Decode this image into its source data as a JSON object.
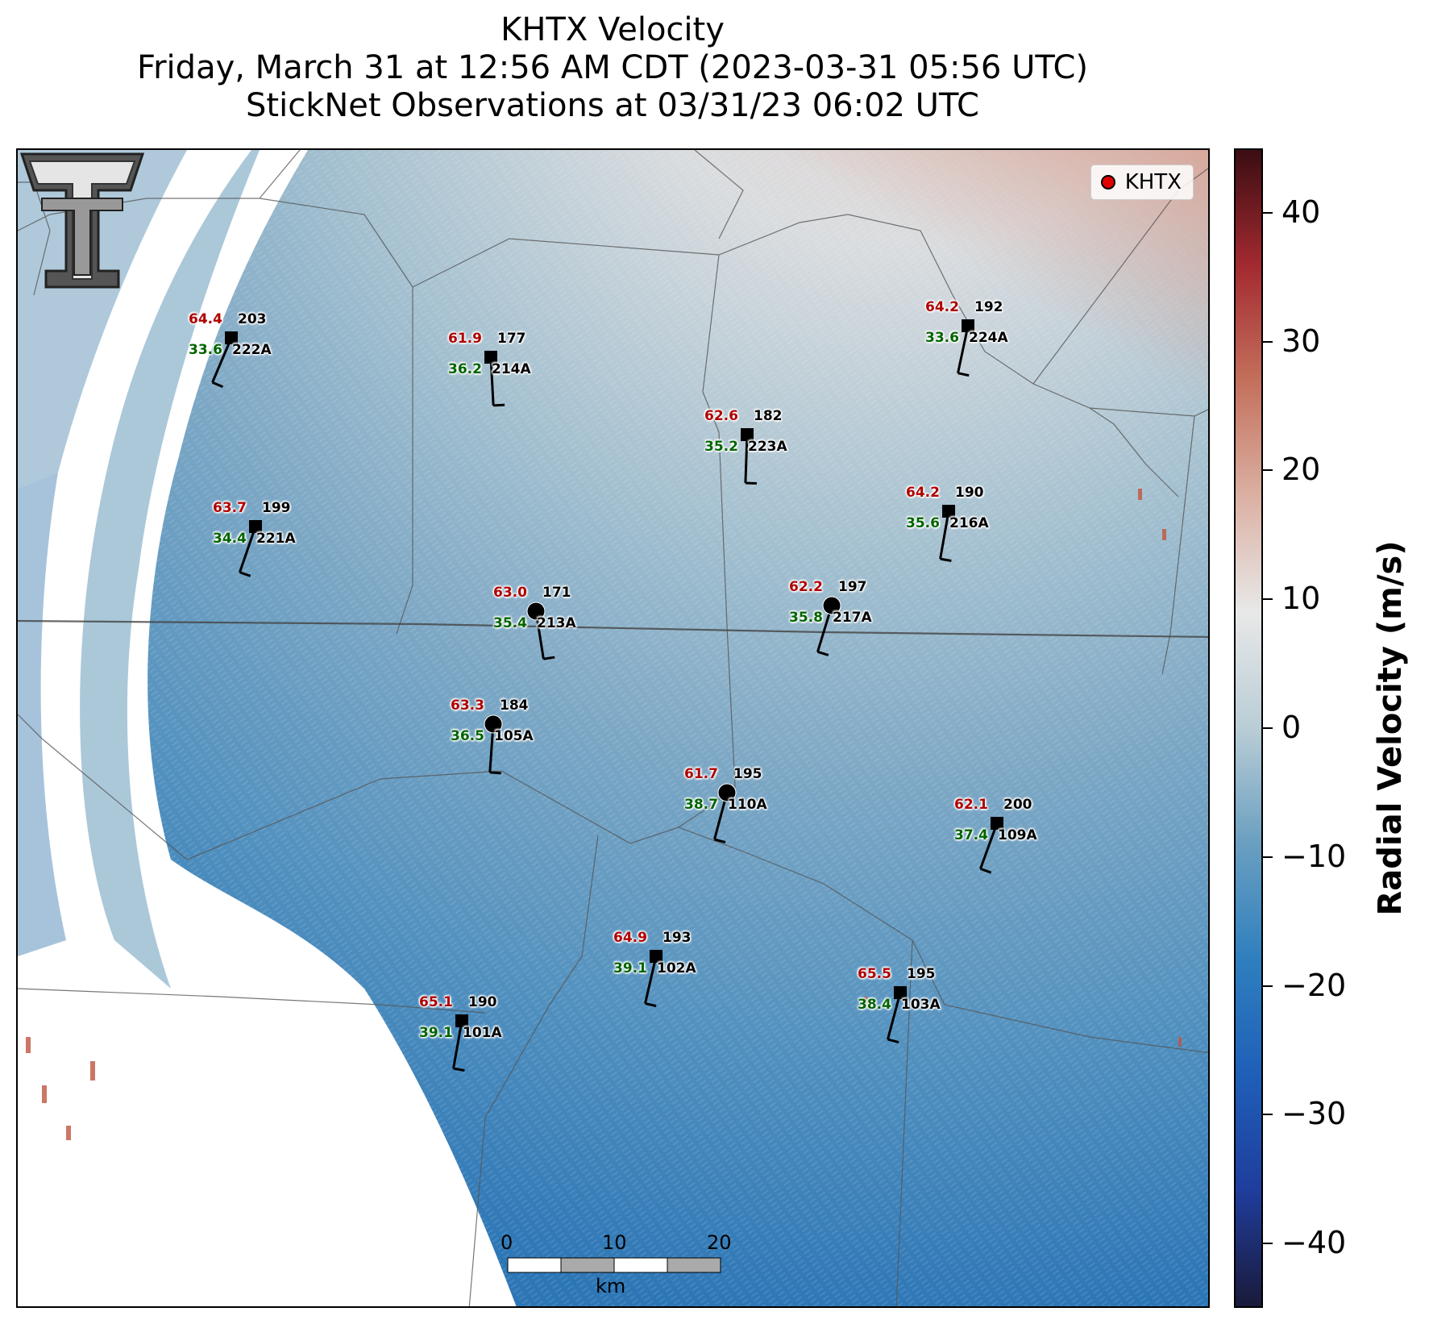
{
  "title_lines": [
    "KHTX Velocity",
    "Friday, March 31 at 12:56 AM CDT (2023-03-31 05:56 UTC)",
    "StickNet Observations at 03/31/23 06:02 UTC"
  ],
  "legend": {
    "label": "KHTX",
    "marker_color": "#e00000"
  },
  "logo": {
    "name": "texas-tech-double-t-logo"
  },
  "stations": [
    {
      "id": "222A",
      "marker": "square",
      "temp": "64.4",
      "dewpoint": "33.6",
      "wind_dir": "203"
    },
    {
      "id": "214A",
      "marker": "square",
      "temp": "61.9",
      "dewpoint": "36.2",
      "wind_dir": "177"
    },
    {
      "id": "223A",
      "marker": "square",
      "temp": "62.6",
      "dewpoint": "35.2",
      "wind_dir": "182"
    },
    {
      "id": "224A",
      "marker": "square",
      "temp": "64.2",
      "dewpoint": "33.6",
      "wind_dir": "192"
    },
    {
      "id": "221A",
      "marker": "square",
      "temp": "63.7",
      "dewpoint": "34.4",
      "wind_dir": "199"
    },
    {
      "id": "216A",
      "marker": "square",
      "temp": "64.2",
      "dewpoint": "35.6",
      "wind_dir": "190"
    },
    {
      "id": "213A",
      "marker": "circle",
      "temp": "63.0",
      "dewpoint": "35.4",
      "wind_dir": "171"
    },
    {
      "id": "217A",
      "marker": "circle",
      "temp": "62.2",
      "dewpoint": "35.8",
      "wind_dir": "197"
    },
    {
      "id": "105A",
      "marker": "circle",
      "temp": "63.3",
      "dewpoint": "36.5",
      "wind_dir": "184"
    },
    {
      "id": "110A",
      "marker": "circle",
      "temp": "61.7",
      "dewpoint": "38.7",
      "wind_dir": "195"
    },
    {
      "id": "109A",
      "marker": "square",
      "temp": "62.1",
      "dewpoint": "37.4",
      "wind_dir": "200"
    },
    {
      "id": "102A",
      "marker": "square",
      "temp": "64.9",
      "dewpoint": "39.1",
      "wind_dir": "193"
    },
    {
      "id": "103A",
      "marker": "square",
      "temp": "65.5",
      "dewpoint": "38.4",
      "wind_dir": "195"
    },
    {
      "id": "101A",
      "marker": "square",
      "temp": "65.1",
      "dewpoint": "39.1",
      "wind_dir": "190"
    }
  ],
  "scalebar": {
    "ticks": [
      "0",
      "10",
      "20"
    ],
    "unit": "km"
  },
  "colorbar": {
    "label": "Radial Velocity (m/s)",
    "min": -45,
    "max": 45,
    "ticks": [
      "40",
      "30",
      "20",
      "10",
      "0",
      "−10",
      "−20",
      "−30",
      "−40"
    ],
    "tick_values": [
      40,
      30,
      20,
      10,
      0,
      -10,
      -20,
      -30,
      -40
    ],
    "colors": [
      "#1a1a3a",
      "#1f3d9c",
      "#1f5fb8",
      "#2f7fbf",
      "#6a9fc0",
      "#b9cdd6",
      "#e8e8e8",
      "#dbb1a3",
      "#c4705c",
      "#a32a30",
      "#3a0d12"
    ]
  }
}
